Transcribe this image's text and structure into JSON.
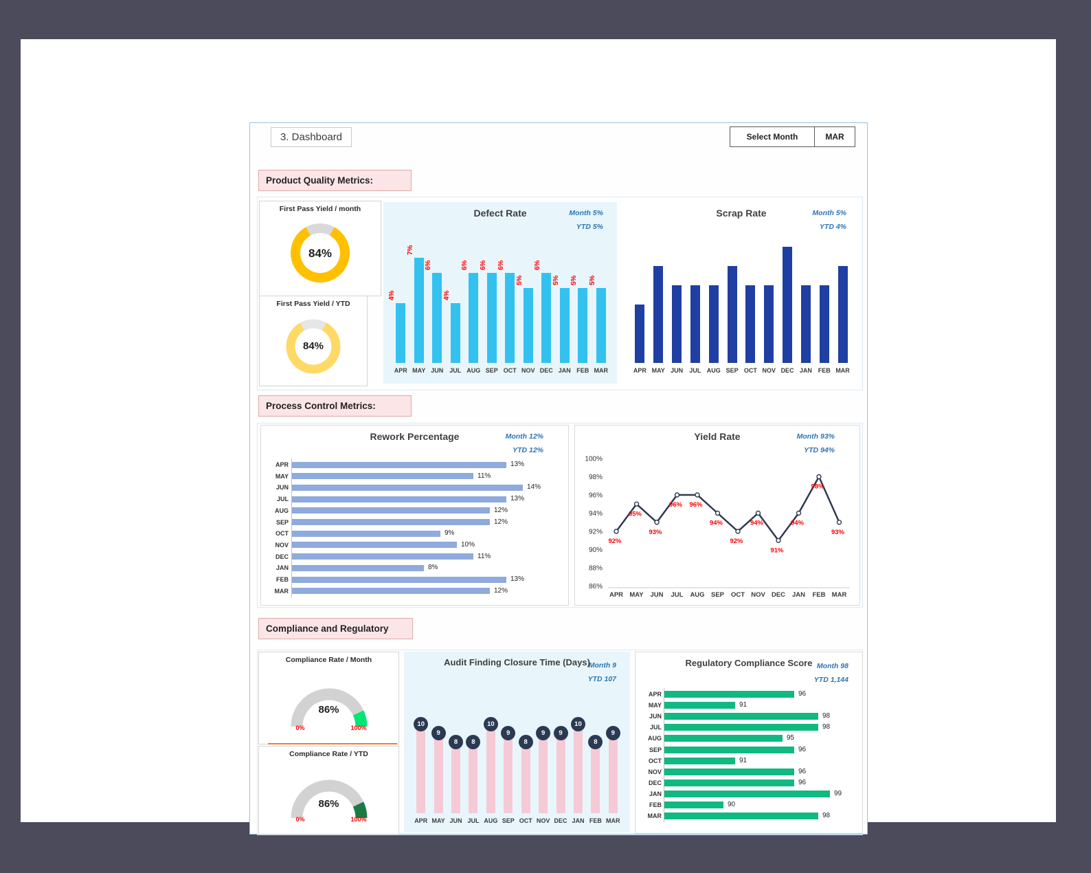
{
  "header": {
    "title": "3. Dashboard",
    "select_month_label": "Select Month",
    "selected_month": "MAR"
  },
  "sections": {
    "product_quality": "Product Quality Metrics:",
    "process_control": "Process Control Metrics:",
    "compliance": "Compliance and Regulatory"
  },
  "months": [
    "APR",
    "MAY",
    "JUN",
    "JUL",
    "AUG",
    "SEP",
    "OCT",
    "NOV",
    "DEC",
    "JAN",
    "FEB",
    "MAR"
  ],
  "theme": {
    "stat_text": "#2E75B6",
    "data_label_red": "#FF0000",
    "section_label_bg": "#FBE5E6",
    "panel_tint_bg": "#E8F6FC",
    "divider_orange": "#ED7D31",
    "dashboard_border": "#9DC3E6"
  },
  "chart_data": [
    {
      "id": "fpy_month",
      "type": "pie",
      "variant": "donut",
      "title": "First Pass Yield / month",
      "value": 84,
      "value_label": "84%",
      "color": "#FFC000",
      "track_color": "#D9D9D9"
    },
    {
      "id": "fpy_ytd",
      "type": "pie",
      "variant": "donut",
      "title": "First Pass Yield / YTD",
      "value": 84,
      "value_label": "84%",
      "color": "#FFD966",
      "track_color": "#E7E6E6"
    },
    {
      "id": "defect_rate",
      "type": "bar",
      "title": "Defect Rate",
      "stats": {
        "month": "Month 5%",
        "ytd": "YTD 5%"
      },
      "categories": [
        "APR",
        "MAY",
        "JUN",
        "JUL",
        "AUG",
        "SEP",
        "OCT",
        "NOV",
        "DEC",
        "JAN",
        "FEB",
        "MAR"
      ],
      "values": [
        4,
        7,
        6,
        4,
        6,
        6,
        6,
        5,
        6,
        5,
        5,
        5
      ],
      "value_labels": [
        "4%",
        "7%",
        "6%",
        "4%",
        "6%",
        "6%",
        "6%",
        "5%",
        "6%",
        "5%",
        "5%",
        "5%"
      ],
      "bar_color": "#33C1F0",
      "label_color": "#FF0000",
      "label_position": "above-rotated",
      "ylim": [
        0,
        7.5
      ],
      "background": "#E8F6FC"
    },
    {
      "id": "scrap_rate",
      "type": "bar",
      "title": "Scrap Rate",
      "stats": {
        "month": "Month 5%",
        "ytd": "YTD 4%"
      },
      "categories": [
        "APR",
        "MAY",
        "JUN",
        "JUL",
        "AUG",
        "SEP",
        "OCT",
        "NOV",
        "DEC",
        "JAN",
        "FEB",
        "MAR"
      ],
      "values": [
        3,
        5,
        4,
        4,
        4,
        5,
        4,
        4,
        6,
        4,
        4,
        5
      ],
      "value_labels": [
        "3%",
        "5%",
        "4%",
        "4%",
        "4%",
        "5%",
        "4%",
        "4%",
        "6%",
        "4%",
        "4%",
        "5%"
      ],
      "bar_color": "#203FA2",
      "label_color": "#FFFFFF",
      "label_position": "inside-bottom-rotated",
      "ylim": [
        0,
        6.6
      ]
    },
    {
      "id": "rework_percentage",
      "type": "bar",
      "orientation": "horizontal",
      "title": "Rework Percentage",
      "stats": {
        "month": "Month 12%",
        "ytd": "YTD 12%"
      },
      "categories": [
        "APR",
        "MAY",
        "JUN",
        "JUL",
        "AUG",
        "SEP",
        "OCT",
        "NOV",
        "DEC",
        "JAN",
        "FEB",
        "MAR"
      ],
      "values": [
        13,
        11,
        14,
        13,
        12,
        12,
        9,
        10,
        11,
        8,
        13,
        12
      ],
      "value_labels": [
        "13%",
        "11%",
        "14%",
        "13%",
        "12%",
        "12%",
        "9%",
        "10%",
        "11%",
        "8%",
        "13%",
        "12%"
      ],
      "bar_color": "#8FAADC",
      "xlim": [
        0,
        15
      ]
    },
    {
      "id": "yield_rate",
      "type": "line",
      "title": "Yield Rate",
      "stats": {
        "month": "Month 93%",
        "ytd": "YTD 94%"
      },
      "categories": [
        "APR",
        "MAY",
        "JUN",
        "JUL",
        "AUG",
        "SEP",
        "OCT",
        "NOV",
        "DEC",
        "JAN",
        "FEB",
        "MAR"
      ],
      "values": [
        92,
        95,
        93,
        96,
        96,
        94,
        92,
        94,
        91,
        94,
        98,
        93
      ],
      "value_labels": [
        "92%",
        "95%",
        "93%",
        "96%",
        "96%",
        "94%",
        "92%",
        "94%",
        "91%",
        "94%",
        "98%",
        "93%"
      ],
      "ytick_labels": [
        "86%",
        "88%",
        "90%",
        "92%",
        "94%",
        "96%",
        "98%",
        "100%"
      ],
      "line_color": "#2F3A50",
      "marker": "circle-white",
      "label_color": "#FF0000",
      "ylim": [
        86,
        100
      ],
      "ytick_step": 2
    },
    {
      "id": "compliance_month",
      "type": "pie",
      "variant": "gauge",
      "title": "Compliance Rate / Month",
      "value": 86,
      "value_label": "86%",
      "min_label": "0%",
      "max_label": "100%",
      "color": "#00E676",
      "track_color": "#D2D2D2"
    },
    {
      "id": "compliance_ytd",
      "type": "pie",
      "variant": "gauge",
      "title": "Compliance Rate / YTD",
      "value": 86,
      "value_label": "86%",
      "min_label": "0%",
      "max_label": "100%",
      "color": "#1B7A43",
      "track_color": "#D2D2D2"
    },
    {
      "id": "audit_closure",
      "type": "bar",
      "title": "Audit Finding Closure Time (Days)",
      "stats": {
        "month": "Month 9",
        "ytd": "YTD 107"
      },
      "categories": [
        "APR",
        "MAY",
        "JUN",
        "JUL",
        "AUG",
        "SEP",
        "OCT",
        "NOV",
        "DEC",
        "JAN",
        "FEB",
        "MAR"
      ],
      "values": [
        10,
        9,
        8,
        8,
        10,
        9,
        8,
        9,
        9,
        10,
        8,
        9
      ],
      "value_labels": [
        "10",
        "9",
        "8",
        "8",
        "10",
        "9",
        "8",
        "9",
        "9",
        "10",
        "8",
        "9"
      ],
      "bar_color": "#F5CAD5",
      "badge_color": "#2B3A52",
      "badge_text_color": "#FFFFFF",
      "ylim": [
        0,
        11
      ],
      "background": "#E8F6FC"
    },
    {
      "id": "regulatory_score",
      "type": "bar",
      "orientation": "horizontal",
      "title": "Regulatory Compliance Score",
      "stats": {
        "month": "Month 98",
        "ytd": "YTD 1,144"
      },
      "categories": [
        "APR",
        "MAY",
        "JUN",
        "JUL",
        "AUG",
        "SEP",
        "OCT",
        "NOV",
        "DEC",
        "JAN",
        "FEB",
        "MAR"
      ],
      "values": [
        96,
        91,
        98,
        98,
        95,
        96,
        91,
        96,
        96,
        99,
        90,
        98
      ],
      "value_labels": [
        "96",
        "91",
        "98",
        "98",
        "95",
        "96",
        "91",
        "96",
        "96",
        "99",
        "90",
        "98"
      ],
      "bar_color": "#10B981",
      "xlim": [
        85,
        100
      ]
    }
  ]
}
